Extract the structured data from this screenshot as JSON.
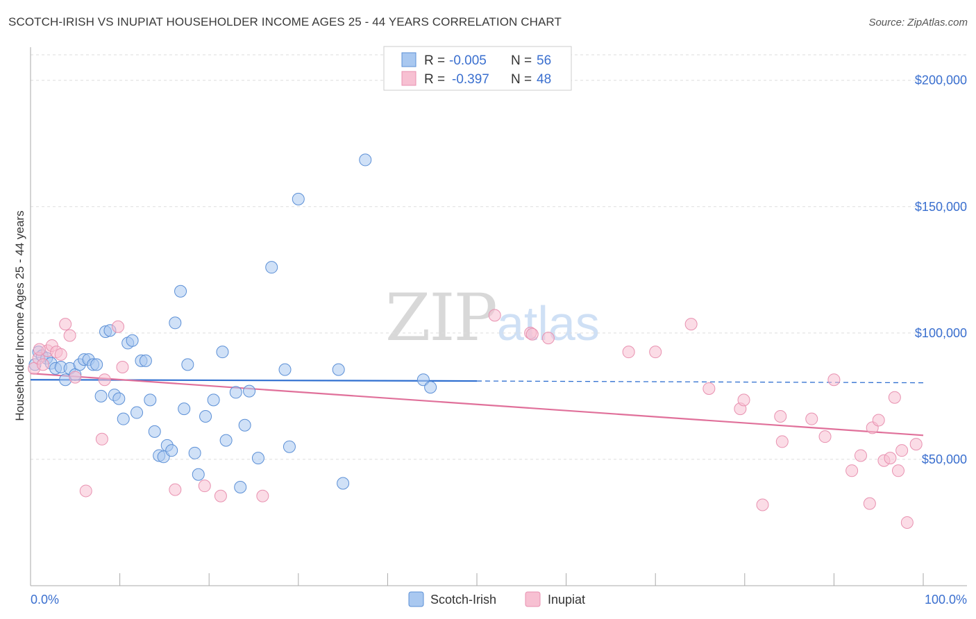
{
  "title": "SCOTCH-IRISH VS INUPIAT HOUSEHOLDER INCOME AGES 25 - 44 YEARS CORRELATION CHART",
  "source": "Source: ZipAtlas.com",
  "watermark": {
    "zip": "ZIP",
    "atlas": "atlas"
  },
  "legend": {
    "rows": [
      {
        "r_label": "R =",
        "r_value": "-0.005",
        "n_label": "N =",
        "n_value": "56",
        "color": "#a9c8f0",
        "stroke": "#5b8fd6"
      },
      {
        "r_label": "R =",
        "r_value": "-0.397",
        "n_label": "N =",
        "n_value": "48",
        "color": "#f7c0d2",
        "stroke": "#e891b0"
      }
    ]
  },
  "chart_data": {
    "type": "scatter",
    "title": "SCOTCH-IRISH VS INUPIAT HOUSEHOLDER INCOME AGES 25 - 44 YEARS CORRELATION CHART",
    "xlabel": "",
    "ylabel": "Householder Income Ages 25 - 44 years",
    "xlim": [
      0,
      100
    ],
    "ylim": [
      0,
      212000
    ],
    "x_tick_labels": [
      "0.0%",
      "100.0%"
    ],
    "y_ticks": [
      50000,
      100000,
      150000,
      200000
    ],
    "y_tick_labels": [
      "$50,000",
      "$100,000",
      "$150,000",
      "$200,000"
    ],
    "series": [
      {
        "name": "Scotch-Irish",
        "color": "#a9c8f0",
        "stroke": "#5b8fd6",
        "trend": {
          "x0": 0,
          "y0": 81500,
          "x1": 50,
          "y1": 81000,
          "dash_x1": 100,
          "dash_y1": 80300,
          "color": "#2f6fd0"
        },
        "points": [
          [
            0.5,
            87500
          ],
          [
            0.9,
            92500
          ],
          [
            1.3,
            91000
          ],
          [
            1.8,
            90000
          ],
          [
            2.3,
            88000
          ],
          [
            2.8,
            86000
          ],
          [
            3.4,
            86500
          ],
          [
            3.9,
            81500
          ],
          [
            4.4,
            86000
          ],
          [
            5.0,
            83500
          ],
          [
            5.5,
            87500
          ],
          [
            6.0,
            89500
          ],
          [
            6.5,
            89500
          ],
          [
            7.0,
            87500
          ],
          [
            7.4,
            87500
          ],
          [
            7.9,
            75000
          ],
          [
            8.4,
            100500
          ],
          [
            8.9,
            101000
          ],
          [
            9.4,
            75500
          ],
          [
            9.9,
            74000
          ],
          [
            10.4,
            66000
          ],
          [
            10.9,
            96000
          ],
          [
            11.4,
            97000
          ],
          [
            11.9,
            68500
          ],
          [
            12.4,
            89000
          ],
          [
            12.9,
            89000
          ],
          [
            13.4,
            73500
          ],
          [
            13.9,
            61000
          ],
          [
            14.4,
            51500
          ],
          [
            14.9,
            51000
          ],
          [
            15.3,
            55500
          ],
          [
            15.8,
            53500
          ],
          [
            16.2,
            104000
          ],
          [
            16.8,
            116500
          ],
          [
            17.2,
            70000
          ],
          [
            17.6,
            87500
          ],
          [
            18.4,
            52500
          ],
          [
            18.8,
            44000
          ],
          [
            19.6,
            67000
          ],
          [
            20.5,
            73500
          ],
          [
            21.5,
            92500
          ],
          [
            21.9,
            57500
          ],
          [
            23.0,
            76500
          ],
          [
            23.5,
            39000
          ],
          [
            24.0,
            63500
          ],
          [
            24.5,
            77000
          ],
          [
            25.5,
            50500
          ],
          [
            27.0,
            126000
          ],
          [
            28.5,
            85500
          ],
          [
            29.0,
            55000
          ],
          [
            30.0,
            153000
          ],
          [
            34.5,
            85500
          ],
          [
            35.0,
            40500
          ],
          [
            37.5,
            168500
          ],
          [
            44.0,
            81500
          ],
          [
            44.8,
            78500
          ]
        ]
      },
      {
        "name": "Inupiat",
        "color": "#f7c0d2",
        "stroke": "#e891b0",
        "trend": {
          "x0": 0,
          "y0": 84000,
          "x1": 100,
          "y1": 59500,
          "color": "#e0709a"
        },
        "points": [
          [
            0.4,
            86000
          ],
          [
            0.9,
            90000
          ],
          [
            1.4,
            87500
          ],
          [
            1.9,
            93000
          ],
          [
            2.4,
            95000
          ],
          [
            2.9,
            92500
          ],
          [
            3.4,
            91500
          ],
          [
            3.9,
            103500
          ],
          [
            4.4,
            99000
          ],
          [
            5.0,
            82500
          ],
          [
            6.2,
            37500
          ],
          [
            8.0,
            58000
          ],
          [
            8.3,
            81500
          ],
          [
            9.8,
            102500
          ],
          [
            10.3,
            86500
          ],
          [
            16.2,
            38000
          ],
          [
            19.5,
            39500
          ],
          [
            21.3,
            35500
          ],
          [
            26.0,
            35500
          ],
          [
            52.0,
            107000
          ],
          [
            56.0,
            100000
          ],
          [
            56.2,
            99500
          ],
          [
            58.0,
            98000
          ],
          [
            67.0,
            92500
          ],
          [
            70.0,
            92500
          ],
          [
            74.0,
            103500
          ],
          [
            76.0,
            78000
          ],
          [
            79.5,
            70000
          ],
          [
            79.9,
            73500
          ],
          [
            82.0,
            32000
          ],
          [
            84.0,
            67000
          ],
          [
            84.2,
            57000
          ],
          [
            87.5,
            66000
          ],
          [
            89.0,
            59000
          ],
          [
            90.0,
            81500
          ],
          [
            92.0,
            45500
          ],
          [
            93.0,
            51500
          ],
          [
            94.0,
            32500
          ],
          [
            94.3,
            62500
          ],
          [
            95.0,
            65500
          ],
          [
            95.6,
            49500
          ],
          [
            96.3,
            50500
          ],
          [
            96.8,
            74500
          ],
          [
            97.2,
            45500
          ],
          [
            97.6,
            53500
          ],
          [
            98.2,
            25000
          ],
          [
            99.2,
            56000
          ],
          [
            1.0,
            93500
          ]
        ]
      }
    ]
  },
  "bottom_legend": [
    {
      "label": "Scotch-Irish",
      "color": "#a9c8f0",
      "stroke": "#5b8fd6"
    },
    {
      "label": "Inupiat",
      "color": "#f7c0d2",
      "stroke": "#e891b0"
    }
  ]
}
